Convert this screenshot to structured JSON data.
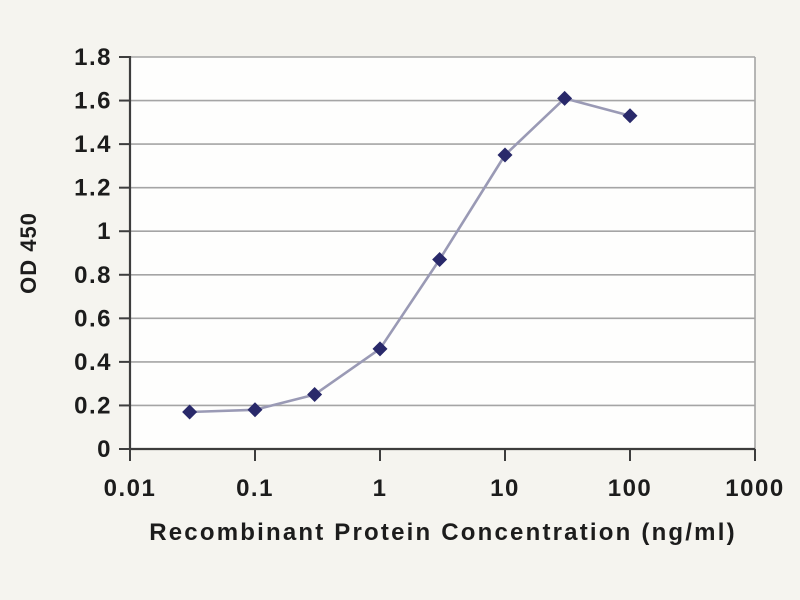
{
  "figure": {
    "background_color": "#f5f4ef",
    "plot_background_color": "#fefefd"
  },
  "chart_data": {
    "type": "line",
    "title": "",
    "xlabel": "Recombinant Protein Concentration (ng/ml)",
    "ylabel": "OD 450",
    "x_scale": "log",
    "xlim": [
      0.01,
      1000
    ],
    "ylim": [
      0,
      1.8
    ],
    "x_tick_values": [
      0.01,
      0.1,
      1,
      10,
      100,
      1000
    ],
    "x_tick_labels": [
      "0.01",
      "0.1",
      "1",
      "10",
      "100",
      "1000"
    ],
    "y_tick_values": [
      0,
      0.2,
      0.4,
      0.6,
      0.8,
      1,
      1.2,
      1.4,
      1.6,
      1.8
    ],
    "y_tick_labels": [
      "0",
      "0.2",
      "0.4",
      "0.6",
      "0.8",
      "1",
      "1.2",
      "1.4",
      "1.6",
      "1.8"
    ],
    "grid": "horizontal",
    "legend_position": "none",
    "series": [
      {
        "name": "OD 450",
        "x": [
          0.03,
          0.1,
          0.3,
          1,
          3,
          10,
          30,
          100
        ],
        "y": [
          0.17,
          0.18,
          0.25,
          0.46,
          0.87,
          1.35,
          1.61,
          1.53
        ],
        "marker": "diamond",
        "marker_color": "#29296a",
        "line_color": "#9a9ab5"
      }
    ],
    "colors": {
      "gridline": "#a5a5a5",
      "axis": "#3d3d3d",
      "plot_border_right": "#a5a5a5",
      "tick_label": "#1c1c1c"
    }
  }
}
